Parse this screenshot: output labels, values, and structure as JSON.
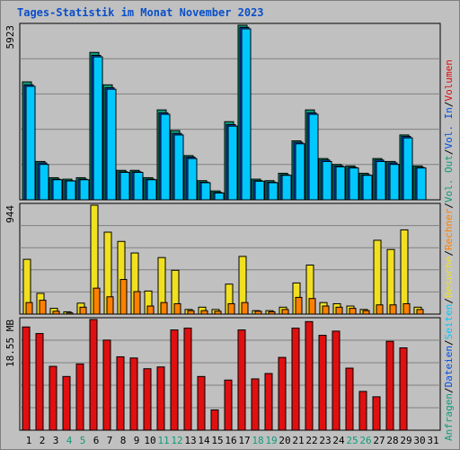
{
  "title": "Tages-Statistik im Monat November 2023",
  "colors": {
    "background": "#c0c0c0",
    "title": "#0a4fc8",
    "hits": "#0f9b7a",
    "files": "#0050e0",
    "pages": "#00c8ff",
    "visits": "#f0e020",
    "sites": "#ff8000",
    "kbytes": "#e01010",
    "weekend": "#0f9b7a"
  },
  "chart_data": [
    {
      "type": "bar",
      "panel": "hits-files-pages",
      "ymax_label": "5923",
      "ylim": [
        0,
        5923
      ],
      "categories": [
        "1",
        "2",
        "3",
        "4",
        "5",
        "6",
        "7",
        "8",
        "9",
        "10",
        "11",
        "12",
        "13",
        "14",
        "15",
        "16",
        "17",
        "18",
        "19",
        "20",
        "21",
        "22",
        "23",
        "24",
        "25",
        "26",
        "27",
        "28",
        "29",
        "30"
      ],
      "series": [
        {
          "name": "Anfragen",
          "values": [
            4000,
            1300,
            750,
            700,
            750,
            5000,
            3900,
            1000,
            1000,
            750,
            3050,
            2350,
            1500,
            650,
            300,
            2650,
            5923,
            700,
            650,
            900,
            2000,
            3050,
            1400,
            1200,
            1150,
            900,
            1400,
            1300,
            2200,
            1150
          ]
        },
        {
          "name": "Dateien",
          "values": [
            3900,
            1250,
            700,
            650,
            700,
            4900,
            3800,
            950,
            950,
            700,
            2950,
            2250,
            1450,
            600,
            250,
            2550,
            5850,
            650,
            600,
            850,
            1950,
            2950,
            1350,
            1150,
            1100,
            850,
            1350,
            1250,
            2150,
            1100
          ]
        },
        {
          "name": "Seiten",
          "values": [
            3850,
            1200,
            680,
            640,
            680,
            4850,
            3750,
            930,
            930,
            680,
            2900,
            2200,
            1400,
            580,
            230,
            2500,
            5800,
            630,
            580,
            830,
            1900,
            2900,
            1300,
            1120,
            1080,
            830,
            1300,
            1200,
            2100,
            1080
          ]
        }
      ],
      "legend": [
        "Anfragen",
        "Dateien",
        "Seiten"
      ]
    },
    {
      "type": "bar",
      "panel": "visits-sites",
      "ymax_label": "944",
      "ylim": [
        0,
        944
      ],
      "categories": [
        "1",
        "2",
        "3",
        "4",
        "5",
        "6",
        "7",
        "8",
        "9",
        "10",
        "11",
        "12",
        "13",
        "14",
        "15",
        "16",
        "17",
        "18",
        "19",
        "20",
        "21",
        "22",
        "23",
        "24",
        "25",
        "26",
        "27",
        "28",
        "29",
        "30"
      ],
      "series": [
        {
          "name": "Besuche",
          "values": [
            475,
            180,
            50,
            20,
            95,
            944,
            710,
            630,
            530,
            200,
            490,
            380,
            40,
            60,
            40,
            260,
            500,
            30,
            30,
            60,
            270,
            425,
            100,
            90,
            70,
            40,
            640,
            560,
            730,
            60
          ]
        },
        {
          "name": "Rechner",
          "values": [
            100,
            120,
            25,
            10,
            60,
            225,
            150,
            300,
            195,
            70,
            100,
            90,
            30,
            30,
            25,
            90,
            100,
            25,
            20,
            40,
            145,
            135,
            70,
            60,
            50,
            30,
            80,
            80,
            90,
            40
          ]
        }
      ],
      "legend": [
        "Besuche",
        "Rechner"
      ]
    },
    {
      "type": "bar",
      "panel": "kbytes",
      "ymax_label": "18.55 MB",
      "ylim": [
        0,
        18.55
      ],
      "categories": [
        "1",
        "2",
        "3",
        "4",
        "5",
        "6",
        "7",
        "8",
        "9",
        "10",
        "11",
        "12",
        "13",
        "14",
        "15",
        "16",
        "17",
        "18",
        "19",
        "20",
        "21",
        "22",
        "23",
        "24",
        "25",
        "26",
        "27",
        "28",
        "29",
        "30"
      ],
      "series": [
        {
          "name": "Volumen",
          "values": [
            17.3,
            16.2,
            10.7,
            9.0,
            11.1,
            18.55,
            15.1,
            12.3,
            12.1,
            10.3,
            10.6,
            16.8,
            17.1,
            9.0,
            3.4,
            8.4,
            16.8,
            8.6,
            9.5,
            12.2,
            17.1,
            18.2,
            15.9,
            16.6,
            10.4,
            6.5,
            5.6,
            14.9,
            13.8,
            0
          ]
        }
      ],
      "legend": [
        "Volumen"
      ]
    }
  ],
  "right_legend": [
    {
      "text": "Anfragen",
      "color": "#0f9b7a"
    },
    {
      "text": "/",
      "color": "#000000"
    },
    {
      "text": "Dateien",
      "color": "#0050e0"
    },
    {
      "text": "/",
      "color": "#000000"
    },
    {
      "text": "Seiten",
      "color": "#00c8ff"
    },
    {
      "text": "/",
      "color": "#000000"
    },
    {
      "text": "Besuche",
      "color": "#f0e020"
    },
    {
      "text": "/",
      "color": "#000000"
    },
    {
      "text": "Rechner",
      "color": "#ff8000"
    },
    {
      "text": "/",
      "color": "#000000"
    },
    {
      "text": "Vol. Out",
      "color": "#0f9b7a"
    },
    {
      "text": "/",
      "color": "#000000"
    },
    {
      "text": "Vol. In",
      "color": "#0050e0"
    },
    {
      "text": "/",
      "color": "#000000"
    },
    {
      "text": "Volumen",
      "color": "#e01010"
    }
  ],
  "x_labels": [
    {
      "text": "1",
      "weekend": false
    },
    {
      "text": "2",
      "weekend": false
    },
    {
      "text": "3",
      "weekend": false
    },
    {
      "text": "4",
      "weekend": true
    },
    {
      "text": "5",
      "weekend": true
    },
    {
      "text": "6",
      "weekend": false
    },
    {
      "text": "7",
      "weekend": false
    },
    {
      "text": "8",
      "weekend": false
    },
    {
      "text": "9",
      "weekend": false
    },
    {
      "text": "10",
      "weekend": false
    },
    {
      "text": "11",
      "weekend": true
    },
    {
      "text": "12",
      "weekend": true
    },
    {
      "text": "13",
      "weekend": false
    },
    {
      "text": "14",
      "weekend": false
    },
    {
      "text": "15",
      "weekend": false
    },
    {
      "text": "16",
      "weekend": false
    },
    {
      "text": "17",
      "weekend": false
    },
    {
      "text": "18",
      "weekend": true
    },
    {
      "text": "19",
      "weekend": true
    },
    {
      "text": "20",
      "weekend": false
    },
    {
      "text": "21",
      "weekend": false
    },
    {
      "text": "22",
      "weekend": false
    },
    {
      "text": "23",
      "weekend": false
    },
    {
      "text": "24",
      "weekend": false
    },
    {
      "text": "25",
      "weekend": true
    },
    {
      "text": "26",
      "weekend": true
    },
    {
      "text": "27",
      "weekend": false
    },
    {
      "text": "28",
      "weekend": false
    },
    {
      "text": "29",
      "weekend": false
    },
    {
      "text": "30",
      "weekend": false
    },
    {
      "text": "31",
      "weekend": false
    }
  ]
}
